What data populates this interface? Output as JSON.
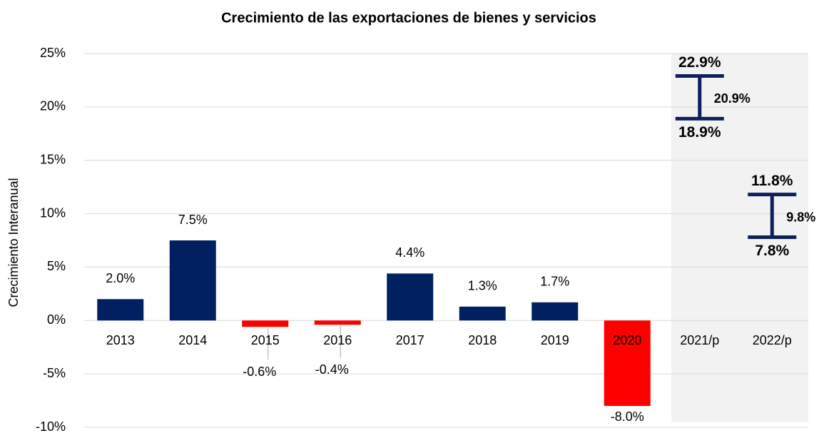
{
  "chart_data": {
    "type": "bar",
    "title": "Crecimiento de las exportaciones de bienes y servicios",
    "y_label": "Crecimiento Interanual",
    "categories": [
      "2013",
      "2014",
      "2015",
      "2016",
      "2017",
      "2018",
      "2019",
      "2020",
      "2021/p",
      "2022/p"
    ],
    "values": [
      2.0,
      7.5,
      -0.6,
      -0.4,
      4.4,
      1.3,
      1.7,
      -8.0,
      null,
      null
    ],
    "value_labels": [
      "2.0%",
      "7.5%",
      "-0.6%",
      "-0.4%",
      "4.4%",
      "1.3%",
      "1.7%",
      "-8.0%",
      null,
      null
    ],
    "colors": [
      "#002060",
      "#002060",
      "#ff0000",
      "#ff0000",
      "#002060",
      "#002060",
      "#002060",
      "#ff0000",
      null,
      null
    ],
    "ranges": {
      "color": "#0d1f5c",
      "low": [
        null,
        null,
        null,
        null,
        null,
        null,
        null,
        null,
        18.9,
        7.8
      ],
      "low_labels": [
        null,
        null,
        null,
        null,
        null,
        null,
        null,
        null,
        "18.9%",
        "7.8%"
      ],
      "mid": [
        null,
        null,
        null,
        null,
        null,
        null,
        null,
        null,
        20.9,
        9.8
      ],
      "mid_labels": [
        null,
        null,
        null,
        null,
        null,
        null,
        null,
        null,
        "20.9%",
        "9.8%"
      ],
      "high": [
        null,
        null,
        null,
        null,
        null,
        null,
        null,
        null,
        22.9,
        11.8
      ],
      "high_labels": [
        null,
        null,
        null,
        null,
        null,
        null,
        null,
        null,
        "22.9%",
        "11.8%"
      ]
    },
    "ylim": [
      -10,
      25
    ],
    "yticks": [
      {
        "value": -10,
        "label": "-10%"
      },
      {
        "value": -5,
        "label": "-5%"
      },
      {
        "value": 0,
        "label": "0%"
      },
      {
        "value": 5,
        "label": "5%"
      },
      {
        "value": 10,
        "label": "10%"
      },
      {
        "value": 15,
        "label": "15%"
      },
      {
        "value": 20,
        "label": "20%"
      },
      {
        "value": 25,
        "label": "25%"
      }
    ],
    "grid": true
  }
}
